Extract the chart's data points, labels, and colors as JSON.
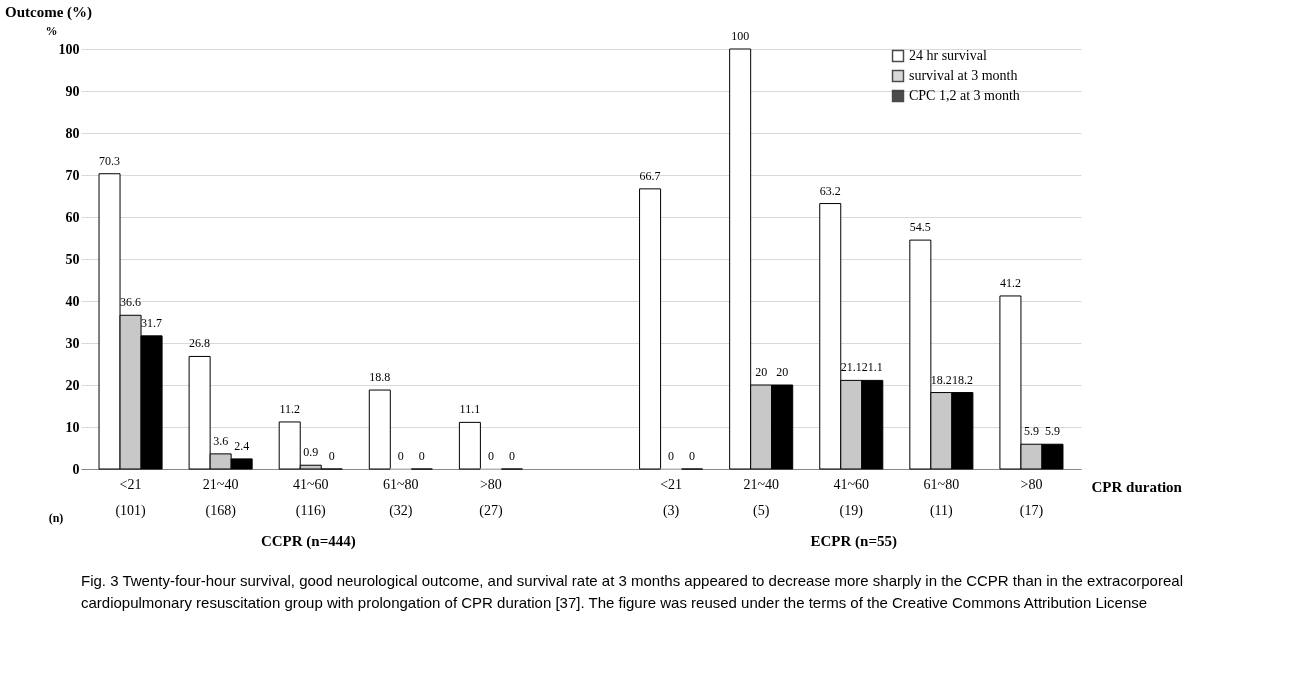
{
  "chart_data": {
    "type": "bar",
    "title": "Outcome (%)",
    "ylabel": "%",
    "xlabel": "CPR duration",
    "categories": [
      "<21\n(101)",
      "21~40\n(168)",
      "41~60\n(116)",
      "61~80\n(32)",
      ">80\n(27)",
      null,
      "<21\n(3)",
      "21~40\n(5)",
      "41~60\n(19)",
      "61~80\n(11)",
      ">80\n(17)"
    ],
    "series": [
      {
        "name": "24 hr survival",
        "color": "#ffffff",
        "values": [
          70.3,
          26.8,
          11.2,
          18.8,
          11.1,
          null,
          66.7,
          100,
          63.2,
          54.5,
          41.2
        ]
      },
      {
        "name": "survival at 3 month",
        "color": "#c8c8c8",
        "values": [
          36.6,
          3.6,
          0.9,
          0,
          0,
          null,
          0,
          20,
          21.1,
          18.2,
          5.9
        ]
      },
      {
        "name": "CPC 1,2 at 3 month",
        "color": "#000000",
        "values": [
          31.7,
          2.4,
          0,
          0,
          0,
          null,
          0,
          20,
          21.1,
          18.2,
          5.9
        ]
      }
    ],
    "ylim": [
      0,
      100
    ],
    "yticks": [
      0,
      10,
      20,
      30,
      40,
      50,
      60,
      70,
      80,
      90,
      100
    ],
    "grid": "y",
    "legend": "top right",
    "data_labels": true,
    "annotations": [
      "(n)",
      "CCPR (n=444)",
      "ECPR (n=55)",
      "Fig. 3 Twenty-four-hour survival, good neurological outcome, and survival rate at 3 months appeared to decrease more sharply in the CCPR than in the extracorporeal cardiopulmonary resuscitation group with prolongation of CPR duration [37]. The figure was reused under the terms of the Creative Commons Attribution License"
    ]
  }
}
